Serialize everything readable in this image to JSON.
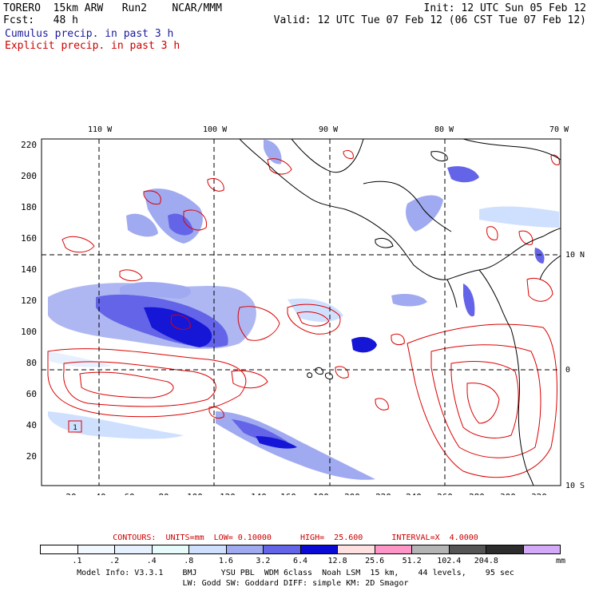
{
  "header": {
    "model": "TORERO  15km ARW   Run2    NCAR/MMM",
    "init": "Init: 12 UTC Sun 05 Feb 12",
    "fcst": "Fcst:   48 h",
    "valid": "Valid: 12 UTC Tue 07 Feb 12 (06 CST Tue 07 Feb 12)",
    "cumulus_label": "Cumulus precip. in past 3 h",
    "explicit_label": "Explicit precip. in past 3 h",
    "cumulus_color": "#1a1a9c",
    "explicit_color": "#cc0000"
  },
  "map": {
    "lon_labels": [
      "110 W",
      "100 W",
      "90 W",
      "80 W",
      "70 W"
    ],
    "lat_labels_right": [
      "10 N",
      "0",
      "10 S"
    ],
    "y_ticks": [
      "220",
      "200",
      "180",
      "160",
      "140",
      "120",
      "100",
      "80",
      "60",
      "40",
      "20"
    ],
    "x_ticks": [
      "20",
      "40",
      "60",
      "80",
      "100",
      "120",
      "140",
      "160",
      "180",
      "200",
      "220",
      "240",
      "260",
      "280",
      "300",
      "320"
    ],
    "box_label": "1"
  },
  "contours": {
    "caption": "CONTOURS:  UNITS=mm  LOW= 0.10000      HIGH=  25.600      INTERVAL=X  4.0000"
  },
  "colorbar": {
    "colors": [
      "#ffffff",
      "#f2f8ff",
      "#e6f0ff",
      "#e8fbfb",
      "#cfe0ff",
      "#a0aaf0",
      "#6464e8",
      "#0a0ad6",
      "#ffe0e0",
      "#ff96c8",
      "#b4b4b4",
      "#555555",
      "#2d2d2d",
      "#d2aaf8"
    ],
    "labels": [
      ".1",
      ".2",
      ".4",
      ".8",
      "1.6",
      "3.2",
      "6.4",
      "12.8",
      "25.6",
      "51.2",
      "102.4",
      "204.8"
    ],
    "unit": "mm"
  },
  "footer": {
    "line1": "Model Info: V3.3.1    BMJ     YSU PBL  WDM 6class  Noah LSM  15 km,    44 levels,    95 sec",
    "line2": "LW: Godd SW: Goddard DIFF: simple KM: 2D Smagor"
  }
}
